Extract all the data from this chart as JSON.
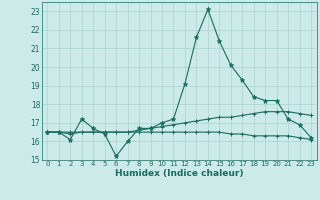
{
  "xlabel": "Humidex (Indice chaleur)",
  "background_color": "#cceae7",
  "grid_color": "#aad4d0",
  "line_color": "#1a6b60",
  "xlim": [
    -0.5,
    23.5
  ],
  "ylim": [
    15,
    23.5
  ],
  "yticks": [
    15,
    16,
    17,
    18,
    19,
    20,
    21,
    22,
    23
  ],
  "xticks": [
    0,
    1,
    2,
    3,
    4,
    5,
    6,
    7,
    8,
    9,
    10,
    11,
    12,
    13,
    14,
    15,
    16,
    17,
    18,
    19,
    20,
    21,
    22,
    23
  ],
  "line1_x": [
    0,
    1,
    2,
    3,
    4,
    5,
    6,
    7,
    8,
    9,
    10,
    11,
    12,
    13,
    14,
    15,
    16,
    17,
    18,
    19,
    20,
    21,
    22,
    23
  ],
  "line1_y": [
    16.5,
    16.5,
    16.1,
    17.2,
    16.7,
    16.4,
    15.2,
    16.0,
    16.7,
    16.7,
    17.0,
    17.2,
    19.1,
    21.6,
    23.1,
    21.4,
    20.1,
    19.3,
    18.4,
    18.2,
    18.2,
    17.2,
    16.9,
    16.2
  ],
  "line2_x": [
    0,
    1,
    2,
    3,
    4,
    5,
    6,
    7,
    8,
    9,
    10,
    11,
    12,
    13,
    14,
    15,
    16,
    17,
    18,
    19,
    20,
    21,
    22,
    23
  ],
  "line2_y": [
    16.5,
    16.5,
    16.4,
    16.5,
    16.5,
    16.5,
    16.5,
    16.5,
    16.6,
    16.7,
    16.8,
    16.9,
    17.0,
    17.1,
    17.2,
    17.3,
    17.3,
    17.4,
    17.5,
    17.6,
    17.6,
    17.6,
    17.5,
    17.4
  ],
  "line3_x": [
    0,
    1,
    2,
    3,
    4,
    5,
    6,
    7,
    8,
    9,
    10,
    11,
    12,
    13,
    14,
    15,
    16,
    17,
    18,
    19,
    20,
    21,
    22,
    23
  ],
  "line3_y": [
    16.5,
    16.5,
    16.5,
    16.5,
    16.5,
    16.5,
    16.5,
    16.5,
    16.5,
    16.5,
    16.5,
    16.5,
    16.5,
    16.5,
    16.5,
    16.5,
    16.4,
    16.4,
    16.3,
    16.3,
    16.3,
    16.3,
    16.2,
    16.1
  ]
}
